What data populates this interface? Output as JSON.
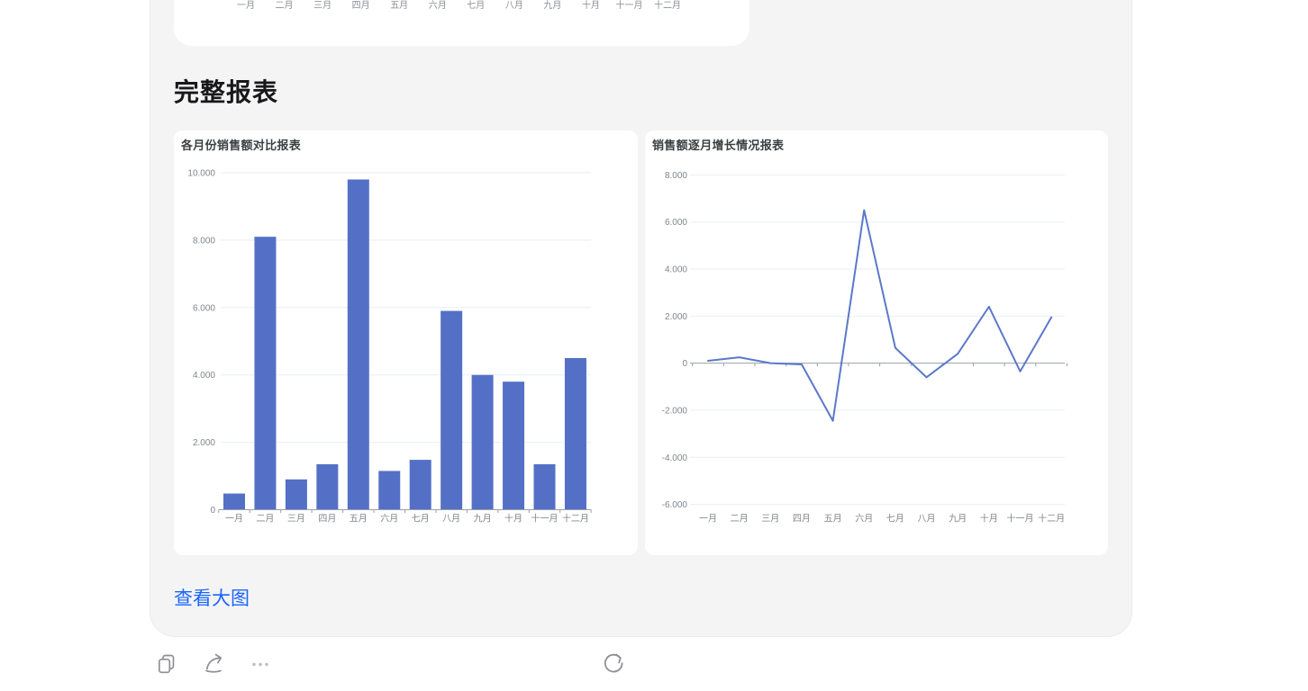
{
  "message": {
    "heading": "完整报表",
    "view_large_label": "查看大图"
  },
  "previous_chart": {
    "x_labels": [
      "一月",
      "二月",
      "三月",
      "四月",
      "五月",
      "六月",
      "七月",
      "八月",
      "九月",
      "十月",
      "十一月",
      "十二月"
    ]
  },
  "chart_data": [
    {
      "type": "bar",
      "title": "各月份销售额对比报表",
      "categories": [
        "一月",
        "二月",
        "三月",
        "四月",
        "五月",
        "六月",
        "七月",
        "八月",
        "九月",
        "十月",
        "十一月",
        "十二月"
      ],
      "values": [
        480,
        8100,
        900,
        1350,
        9800,
        1150,
        1480,
        5900,
        4000,
        3800,
        1350,
        4500
      ],
      "ylim": [
        0,
        10000
      ],
      "ytick_values": [
        0,
        2000,
        4000,
        6000,
        8000,
        10000
      ],
      "ytick_labels": [
        "0",
        "2.000",
        "4.000",
        "6.000",
        "8.000",
        "10.000"
      ],
      "grid": true,
      "legend": "none",
      "color": "#5470c6"
    },
    {
      "type": "line",
      "title": "销售额逐月增长情况报表",
      "categories": [
        "一月",
        "二月",
        "三月",
        "四月",
        "五月",
        "六月",
        "七月",
        "八月",
        "九月",
        "十月",
        "十一月",
        "十二月"
      ],
      "values": [
        100,
        250,
        0,
        -50,
        -2450,
        6500,
        650,
        -600,
        400,
        2400,
        -350,
        1950
      ],
      "ylim": [
        -6000,
        8000
      ],
      "ytick_values": [
        8000,
        6000,
        4000,
        2000,
        0,
        -2000,
        -4000,
        -6000
      ],
      "ytick_labels": [
        "8.000",
        "6.000",
        "4.000",
        "2.000",
        "0",
        "-2.000",
        "-4.000",
        "-6.000"
      ],
      "grid": true,
      "legend": "none",
      "color": "#5b79c9"
    }
  ],
  "toolbar": {
    "buttons": [
      {
        "id": "copy",
        "icon": "copy-icon"
      },
      {
        "id": "share",
        "icon": "share-icon"
      },
      {
        "id": "more-options",
        "icon": "more-options-icon"
      },
      {
        "id": "regenerate",
        "icon": "regenerate-icon"
      }
    ]
  },
  "colors": {
    "bubble_bg": "#f4f4f5",
    "card_bg": "#ffffff",
    "link_blue": "#1a66ff",
    "bar_blue": "#5470c6",
    "line_blue": "#5b79c9",
    "axis_gray": "#9aa0a6",
    "label_gray": "#80868b",
    "gridline": "#e9eef5",
    "icon_gray": "#8f8f94"
  }
}
